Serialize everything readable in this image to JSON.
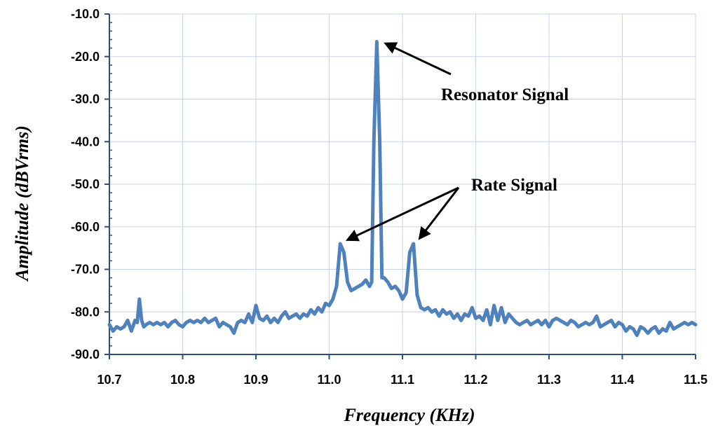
{
  "chart_data": {
    "type": "line",
    "title": "",
    "xlabel": "Frequency (KHz)",
    "ylabel": "Amplitude (dBVrms)",
    "xlim": [
      10.7,
      11.5
    ],
    "ylim": [
      -90,
      -10
    ],
    "x_ticks": [
      "10.7",
      "10.8",
      "10.9",
      "11.0",
      "11.1",
      "11.2",
      "11.3",
      "11.4",
      "11.5"
    ],
    "y_ticks": [
      "-10.0",
      "-20.0",
      "-30.0",
      "-40.0",
      "-50.0",
      "-60.0",
      "-70.0",
      "-80.0",
      "-90.0"
    ],
    "grid": true,
    "legend": "none",
    "series_color": "#4f81bd",
    "series": [
      {
        "x": [
          10.7,
          10.705,
          10.71,
          10.715,
          10.72,
          10.725,
          10.73,
          10.735,
          10.738,
          10.741,
          10.744,
          10.747,
          10.75,
          10.755,
          10.76,
          10.765,
          10.77,
          10.775,
          10.78,
          10.785,
          10.79,
          10.795,
          10.8,
          10.805,
          10.81,
          10.815,
          10.82,
          10.825,
          10.83,
          10.835,
          10.84,
          10.845,
          10.85,
          10.855,
          10.86,
          10.865,
          10.87,
          10.875,
          10.88,
          10.885,
          10.89,
          10.895,
          10.9,
          10.905,
          10.91,
          10.915,
          10.92,
          10.925,
          10.93,
          10.935,
          10.94,
          10.945,
          10.95,
          10.955,
          10.96,
          10.965,
          10.97,
          10.975,
          10.98,
          10.985,
          10.99,
          10.995,
          11.0,
          11.005,
          11.01,
          11.015,
          11.02,
          11.025,
          11.03,
          11.035,
          11.04,
          11.045,
          11.05,
          11.055,
          11.058,
          11.061,
          11.065,
          11.069,
          11.072,
          11.075,
          11.08,
          11.085,
          11.09,
          11.095,
          11.1,
          11.105,
          11.11,
          11.115,
          11.12,
          11.125,
          11.13,
          11.135,
          11.14,
          11.145,
          11.15,
          11.155,
          11.16,
          11.165,
          11.17,
          11.175,
          11.18,
          11.185,
          11.19,
          11.195,
          11.2,
          11.205,
          11.21,
          11.215,
          11.22,
          11.225,
          11.23,
          11.235,
          11.24,
          11.245,
          11.25,
          11.255,
          11.26,
          11.265,
          11.27,
          11.275,
          11.28,
          11.285,
          11.29,
          11.295,
          11.3,
          11.305,
          11.31,
          11.315,
          11.32,
          11.325,
          11.33,
          11.335,
          11.34,
          11.345,
          11.35,
          11.355,
          11.36,
          11.365,
          11.37,
          11.375,
          11.38,
          11.385,
          11.39,
          11.395,
          11.4,
          11.405,
          11.41,
          11.415,
          11.42,
          11.425,
          11.43,
          11.435,
          11.44,
          11.445,
          11.45,
          11.455,
          11.46,
          11.465,
          11.47,
          11.475,
          11.48,
          11.485,
          11.49,
          11.495,
          11.5
        ],
        "y": [
          -83.0,
          -84.5,
          -83.5,
          -84.0,
          -83.5,
          -82.0,
          -84.5,
          -82.0,
          -82.5,
          -77.0,
          -82.0,
          -83.5,
          -83.0,
          -82.5,
          -83.0,
          -82.5,
          -83.0,
          -82.5,
          -83.5,
          -82.5,
          -82.0,
          -83.0,
          -83.5,
          -82.5,
          -82.0,
          -82.5,
          -82.0,
          -82.5,
          -81.5,
          -82.5,
          -82.0,
          -81.5,
          -83.5,
          -82.5,
          -83.0,
          -83.5,
          -85.0,
          -82.5,
          -82.0,
          -82.5,
          -80.5,
          -82.5,
          -78.5,
          -81.5,
          -82.0,
          -81.0,
          -82.5,
          -81.5,
          -82.5,
          -81.0,
          -80.0,
          -81.5,
          -81.0,
          -80.5,
          -81.5,
          -80.5,
          -81.0,
          -79.5,
          -80.5,
          -79.0,
          -80.0,
          -78.0,
          -78.5,
          -77.0,
          -74.0,
          -64.0,
          -66.0,
          -73.0,
          -75.0,
          -74.5,
          -74.0,
          -73.5,
          -72.5,
          -74.0,
          -73.0,
          -40.0,
          -16.5,
          -40.0,
          -72.0,
          -72.0,
          -73.0,
          -74.5,
          -74.0,
          -75.0,
          -77.0,
          -75.5,
          -66.0,
          -64.0,
          -76.0,
          -79.0,
          -79.5,
          -79.0,
          -80.0,
          -79.5,
          -81.0,
          -79.5,
          -80.5,
          -80.0,
          -81.5,
          -80.5,
          -82.0,
          -80.5,
          -81.0,
          -79.0,
          -81.5,
          -81.0,
          -82.0,
          -79.5,
          -83.0,
          -78.5,
          -82.0,
          -79.0,
          -82.5,
          -80.5,
          -81.5,
          -82.5,
          -83.0,
          -82.5,
          -82.0,
          -83.0,
          -82.5,
          -82.0,
          -83.0,
          -82.0,
          -83.5,
          -82.0,
          -81.5,
          -82.0,
          -82.5,
          -83.0,
          -82.0,
          -82.5,
          -83.5,
          -83.0,
          -82.5,
          -83.0,
          -82.5,
          -81.0,
          -83.5,
          -83.0,
          -82.5,
          -82.0,
          -83.5,
          -82.5,
          -83.0,
          -84.5,
          -83.5,
          -84.0,
          -85.5,
          -83.5,
          -84.0,
          -85.0,
          -84.0,
          -83.5,
          -85.0,
          -84.0,
          -84.5,
          -82.5,
          -84.0,
          -83.5,
          -83.0,
          -82.5,
          -83.0,
          -82.5,
          -83.0
        ]
      }
    ],
    "annotations": [
      {
        "text": "Resonator Signal",
        "target_x": 11.066,
        "target_y": -16.5
      },
      {
        "text": "Rate Signal",
        "target_x": 11.016,
        "target_y": -63.5
      },
      {
        "text": "Rate Signal",
        "target_x": 11.117,
        "target_y": -63.5
      }
    ]
  }
}
